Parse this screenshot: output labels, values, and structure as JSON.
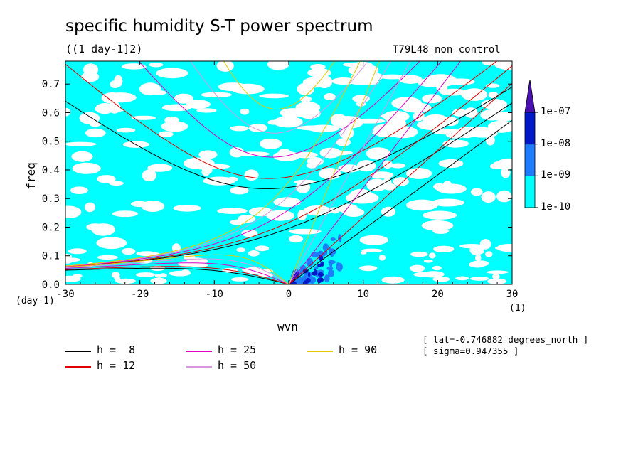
{
  "title": "specific humidity S-T power spectrum",
  "subtitle": "((1 day-1]2)",
  "run_name": "T79L48_non_control",
  "meta": [
    "[ lat=-0.746882 degrees_north ]",
    "[ sigma=0.947355 ]"
  ],
  "chart_data": {
    "type": "heatmap",
    "xlabel": "wvn",
    "ylabel": "freq",
    "x_unit": "(1)",
    "y_unit": "(day-1)",
    "xlim": [
      -30,
      30
    ],
    "ylim": [
      0,
      0.78
    ],
    "xticks": [
      -30,
      -20,
      -10,
      0,
      10,
      20,
      30
    ],
    "xtick_labels": [
      "-30",
      "-20",
      "-10",
      "0",
      "10",
      "20",
      "30"
    ],
    "yticks": [
      0.0,
      0.1,
      0.2,
      0.3,
      0.4,
      0.5,
      0.6,
      0.7
    ],
    "ytick_labels": [
      "0.0",
      "0.1",
      "0.2",
      "0.3",
      "0.4",
      "0.5",
      "0.6",
      "0.7"
    ],
    "colorbar": {
      "levels": [
        "1e-10",
        "1e-09",
        "1e-08",
        "1e-07"
      ],
      "colors": [
        "#00ffff",
        "#1e7dff",
        "#0018c8",
        "#4a10b0"
      ]
    },
    "dispersion_curves": [
      {
        "label": "h =  8",
        "h": 8,
        "color": "#000000"
      },
      {
        "label": "h = 12",
        "h": 12,
        "color": "#e00000"
      },
      {
        "label": "h = 25",
        "h": 25,
        "color": "#e000c8"
      },
      {
        "label": "h = 50",
        "h": 50,
        "color": "#d898e0"
      },
      {
        "label": "h = 90",
        "h": 90,
        "color": "#e8c800"
      }
    ]
  }
}
